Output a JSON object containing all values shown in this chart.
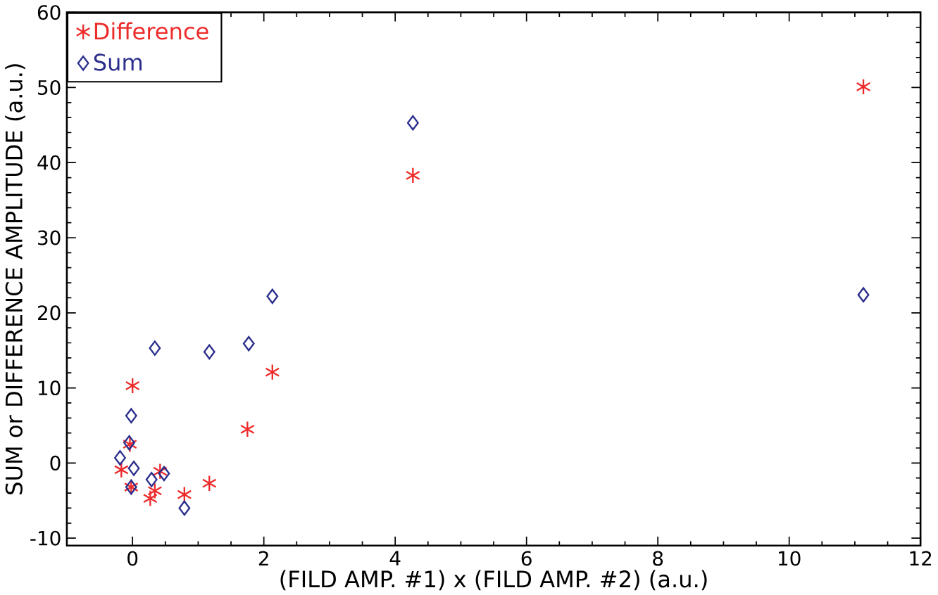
{
  "chart_data": {
    "type": "scatter",
    "xlabel": "(FILD AMP. #1) x (FILD AMP. #2) (a.u.)",
    "ylabel": "SUM or DIFFERENCE AMPLITUDE (a.u.)",
    "xlim": [
      -1,
      12
    ],
    "ylim": [
      -11,
      60
    ],
    "xticks": [
      0,
      2,
      4,
      6,
      8,
      10,
      12
    ],
    "yticks": [
      -10,
      0,
      10,
      20,
      30,
      40,
      50,
      60
    ],
    "grid": false,
    "legend": "top left",
    "series": [
      {
        "name": "Difference",
        "color": "#ee2b2b",
        "marker": "cross",
        "x": [
          0.0,
          -0.04,
          -0.17,
          0.42,
          -0.02,
          0.27,
          0.34,
          0.79,
          1.17,
          1.75,
          2.13,
          4.27,
          11.13
        ],
        "values": [
          10.3,
          2.5,
          -0.9,
          -1.1,
          -3.2,
          -4.7,
          -3.7,
          -4.2,
          -2.7,
          4.5,
          12.1,
          38.3,
          50.1
        ]
      },
      {
        "name": "Sum",
        "color": "#2b2f8c",
        "marker": "diamond",
        "x": [
          0.34,
          1.17,
          1.77,
          -0.02,
          -0.05,
          -0.19,
          0.02,
          -0.02,
          0.29,
          0.48,
          0.79,
          2.13,
          4.27,
          11.13
        ],
        "values": [
          15.3,
          14.8,
          15.9,
          6.3,
          2.7,
          0.7,
          -0.7,
          -3.2,
          -2.2,
          -1.4,
          -6.0,
          22.2,
          45.3,
          22.4
        ]
      }
    ]
  }
}
